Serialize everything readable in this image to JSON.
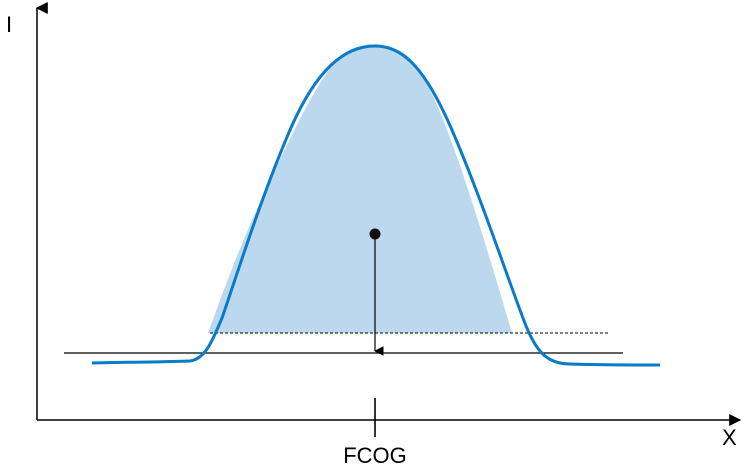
{
  "axes": {
    "y_label": "I",
    "x_label": "X"
  },
  "marker": {
    "label": "FCOG"
  },
  "colors": {
    "curve": "#0a7bc6",
    "fill": "#bcd8ef",
    "axis": "#000000",
    "baseline": "#000000",
    "threshold": "#000000",
    "centroid": "#111111"
  }
}
